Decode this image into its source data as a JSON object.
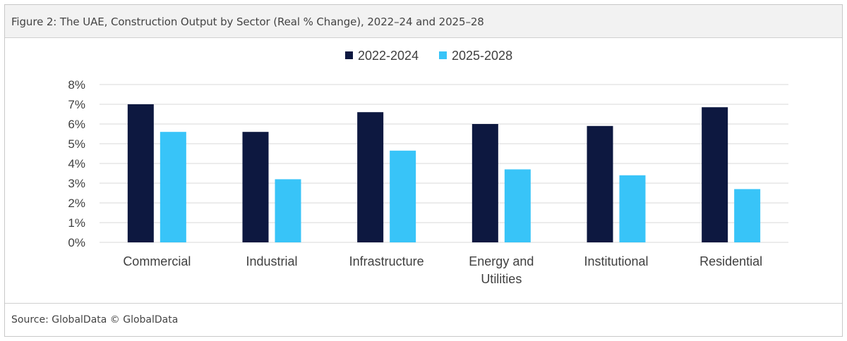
{
  "figure_title": "Figure 2: The UAE, Construction Output by Sector (Real % Change), 2022–24 and 2025–28",
  "source": "Source: GlobalData © GlobalData",
  "colors": {
    "series_a": "#0d1840",
    "series_b": "#38c4f8",
    "grid": "#d9d9d9",
    "text": "#404040"
  },
  "chart_data": {
    "type": "bar",
    "categories": [
      [
        "Commercial"
      ],
      [
        "Industrial"
      ],
      [
        "Infrastructure"
      ],
      [
        "Energy and",
        "Utilities"
      ],
      [
        "Institutional"
      ],
      [
        "Residential"
      ]
    ],
    "series": [
      {
        "name": "2022-2024",
        "values": [
          7.0,
          5.6,
          6.6,
          6.0,
          5.9,
          6.85
        ]
      },
      {
        "name": "2025-2028",
        "values": [
          5.6,
          3.2,
          4.65,
          3.7,
          3.4,
          2.7
        ]
      }
    ],
    "ylim": [
      0,
      8
    ],
    "yticks": [
      "0%",
      "1%",
      "2%",
      "3%",
      "4%",
      "5%",
      "6%",
      "7%",
      "8%"
    ],
    "grid": true,
    "legend": "top-center"
  }
}
